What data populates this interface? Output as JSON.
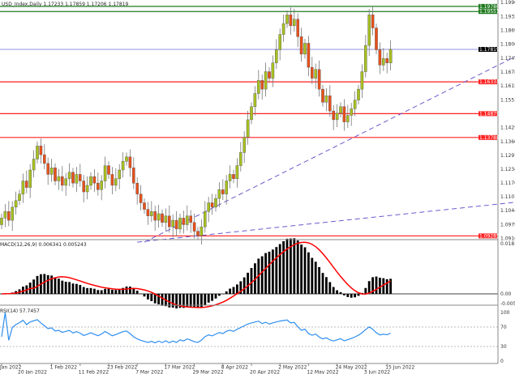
{
  "header": {
    "symbol": "USD_Index,Daily",
    "ohlc": "1.17233 1.17859 1.17206 1.17819"
  },
  "macd_header": "MACD(12,26,9) 0.006341 0.005243",
  "rsi_header": "RSI(14) 57.7457",
  "colors": {
    "bull": "#a8c020",
    "bear": "#e8501a",
    "support_resistance": "#ff2020",
    "upper_levels": "#1f7a1f",
    "price_line": "#6b6bd6",
    "trendline": "#6a5acd",
    "macd_signal": "#ff0000",
    "rsi": "#2f8fef"
  },
  "chart_data": [
    {
      "type": "candlestick",
      "title": "USD_Index,Daily",
      "ylim": [
        1.09165,
        1.1996
      ],
      "price_axis_labels": [
        "1.19960",
        "1.19320",
        "1.18690",
        "1.18060",
        "1.17415",
        "1.16785",
        "1.16155",
        "1.15510",
        "1.14250",
        "1.13605",
        "1.12975",
        "1.12345",
        "1.11700",
        "1.11070",
        "1.10440",
        "1.09795",
        "1.09165"
      ],
      "date_labels": [
        "Jan 2022",
        "20 Jan 2022",
        "1 Feb 2022",
        "11 Feb 2022",
        "23 Feb 2022",
        "7 Mar 2022",
        "17 Mar 2022",
        "29 Mar 2022",
        "8 Apr 2022",
        "20 Apr 2022",
        "2 May 2022",
        "12 May 2022",
        "24 May 2022",
        "3 Jun 2022",
        "15 Jun 2022"
      ],
      "date_label_index": [
        0,
        5,
        14,
        22,
        30,
        38,
        46,
        54,
        62,
        70,
        78,
        86,
        94,
        102,
        108
      ],
      "closes": [
        1.101,
        1.104,
        1.1,
        1.106,
        1.109,
        1.112,
        1.118,
        1.115,
        1.123,
        1.128,
        1.134,
        1.13,
        1.126,
        1.121,
        1.124,
        1.118,
        1.12,
        1.116,
        1.119,
        1.122,
        1.117,
        1.121,
        1.118,
        1.113,
        1.116,
        1.12,
        1.117,
        1.114,
        1.118,
        1.125,
        1.121,
        1.116,
        1.119,
        1.123,
        1.127,
        1.129,
        1.124,
        1.117,
        1.112,
        1.108,
        1.105,
        1.102,
        1.104,
        1.1,
        1.103,
        1.099,
        1.102,
        1.097,
        1.1,
        1.096,
        1.101,
        1.098,
        1.102,
        1.099,
        1.095,
        1.093,
        1.097,
        1.104,
        1.108,
        1.106,
        1.11,
        1.114,
        1.112,
        1.118,
        1.121,
        1.119,
        1.125,
        1.131,
        1.138,
        1.146,
        1.152,
        1.158,
        1.164,
        1.16,
        1.168,
        1.165,
        1.172,
        1.178,
        1.185,
        1.19,
        1.194,
        1.189,
        1.192,
        1.184,
        1.176,
        1.181,
        1.17,
        1.165,
        1.169,
        1.16,
        1.154,
        1.157,
        1.15,
        1.146,
        1.149,
        1.152,
        1.145,
        1.148,
        1.151,
        1.155,
        1.16,
        1.168,
        1.18,
        1.194,
        1.188,
        1.178,
        1.171,
        1.174,
        1.172,
        1.17819
      ],
      "horizontal_levels": [
        {
          "value": "1.19786",
          "kind": "upper"
        },
        {
          "value": "1.19551",
          "kind": "upper"
        },
        {
          "value": "1.17819",
          "kind": "price"
        },
        {
          "value": "1.16334",
          "kind": "sr"
        },
        {
          "value": "1.14879",
          "kind": "sr"
        },
        {
          "value": "1.13788",
          "kind": "sr"
        },
        {
          "value": "1.09285",
          "kind": "sr"
        }
      ],
      "trendlines": [
        {
          "from": [
            40,
            1.09
          ],
          "to": [
            160,
            1.188
          ]
        },
        {
          "from": [
            38,
            1.09
          ],
          "to": [
            160,
            1.111
          ]
        }
      ]
    },
    {
      "type": "bar+line",
      "title": "MACD(12,26,9) 0.006341 0.005243",
      "ylim": [
        -0.00517,
        0.018179
      ],
      "axis_labels": [
        "0.018179",
        "0.00",
        "-0.00517"
      ]
    },
    {
      "type": "line",
      "title": "RSI(14) 57.7457",
      "ylim": [
        0,
        100
      ],
      "axis_labels": [
        "100",
        "70",
        "30",
        "0"
      ]
    }
  ]
}
